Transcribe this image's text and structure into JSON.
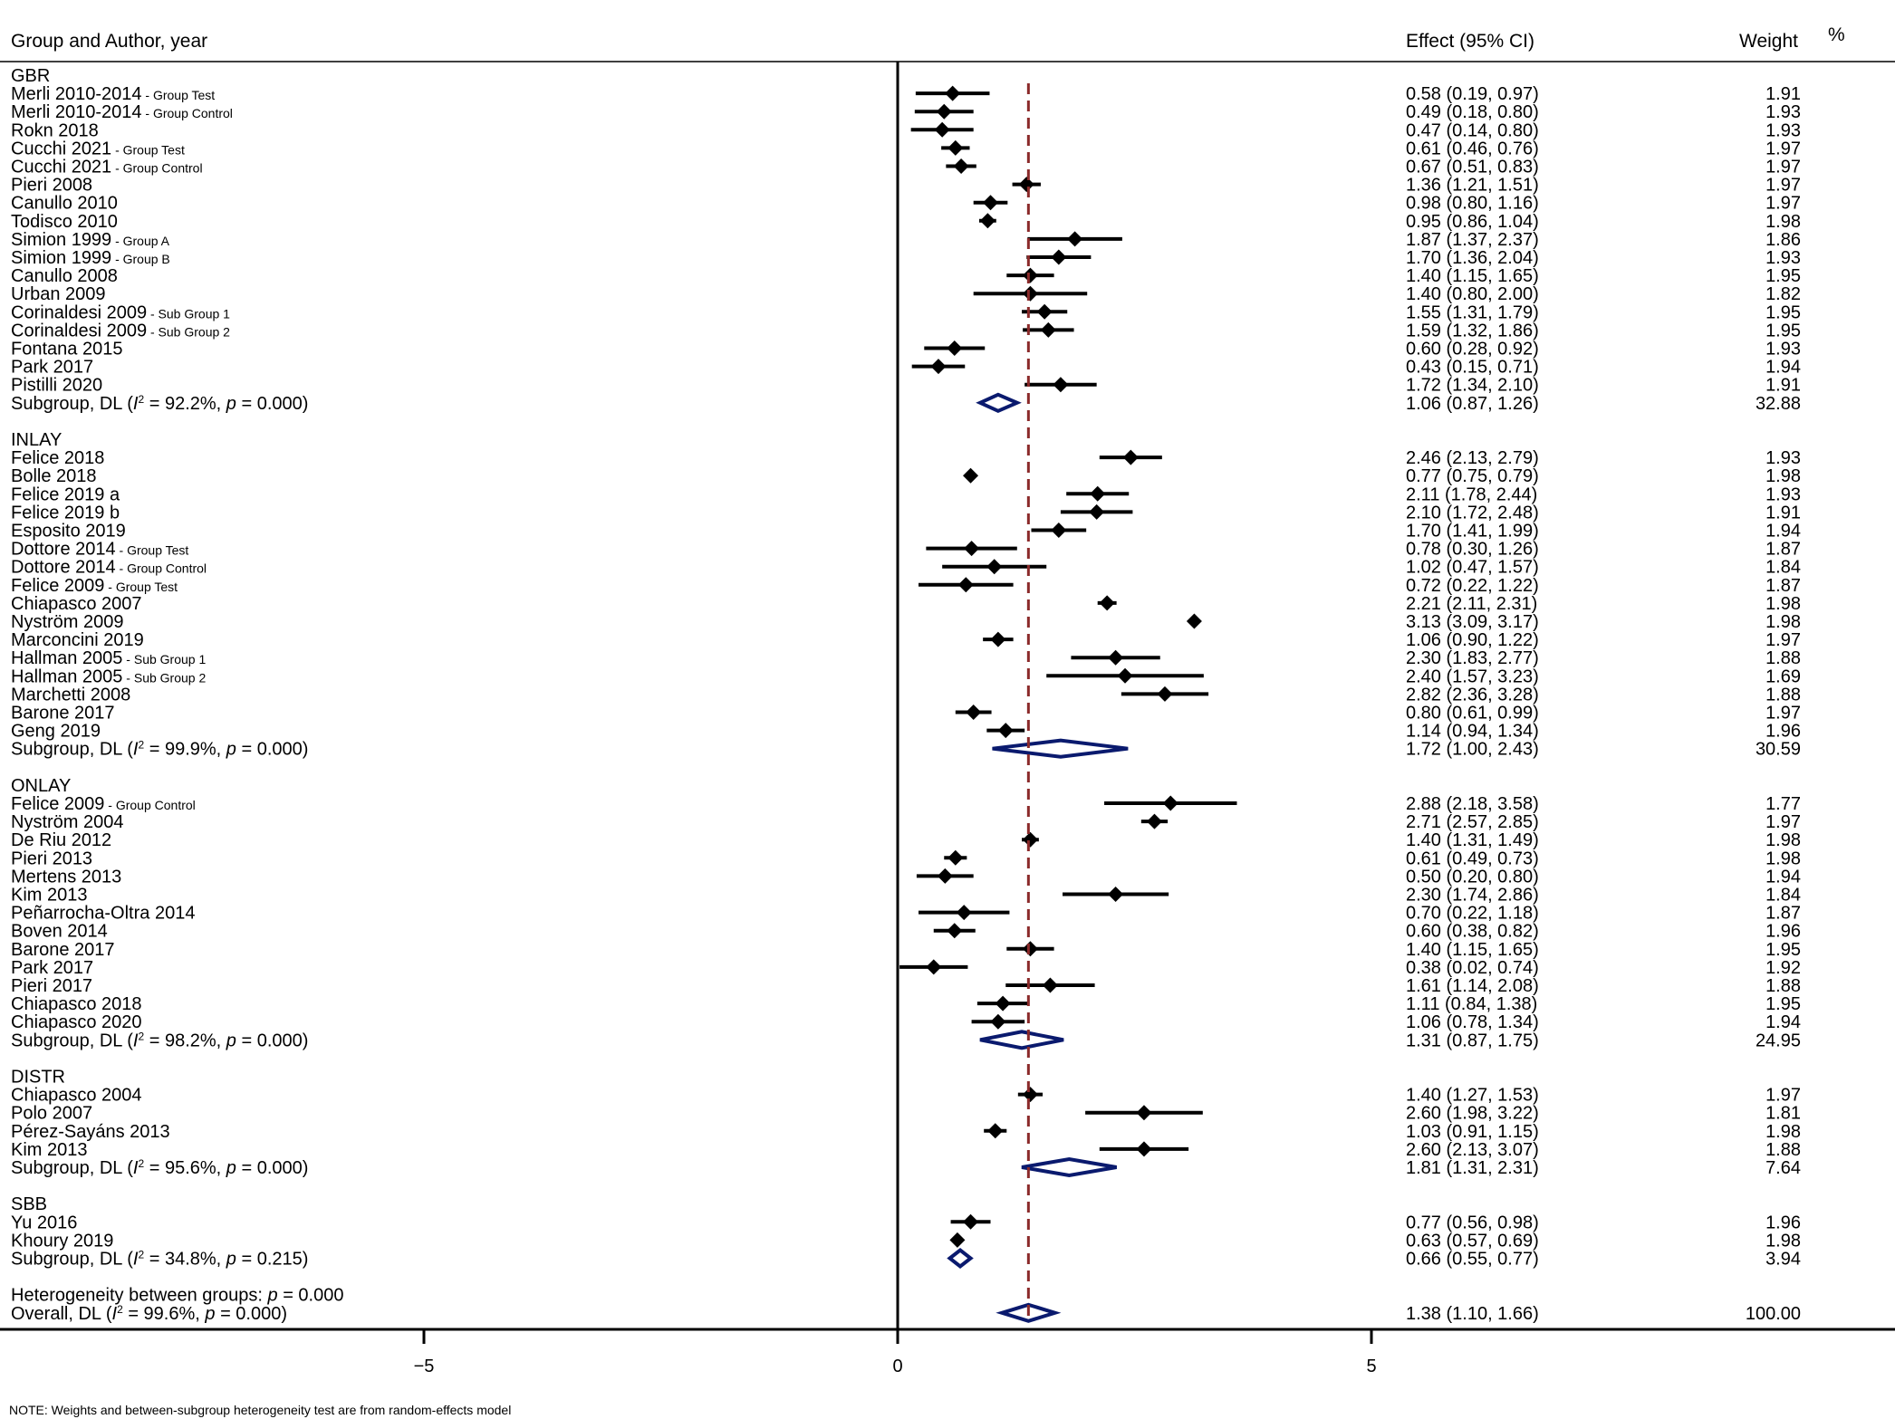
{
  "chart_data": {
    "type": "forest",
    "headers": {
      "study": "Group and Author, year",
      "effect": "Effect (95% CI)",
      "weight": "Weight",
      "weight_unit": "%"
    },
    "xaxis": {
      "ticks": [
        -5,
        0,
        5
      ],
      "tick_labels": [
        "−5",
        "0",
        "5"
      ],
      "range": [
        -9.5,
        10.5
      ]
    },
    "overall_reference": 1.38,
    "groups": [
      {
        "name": "GBR",
        "studies": [
          {
            "label": "Merli 2010-2014",
            "note": "- Group Test",
            "es": 0.58,
            "lo": 0.19,
            "hi": 0.97,
            "ci": "0.58 (0.19, 0.97)",
            "weight": "1.91"
          },
          {
            "label": "Merli 2010-2014",
            "note": "- Group Control",
            "es": 0.49,
            "lo": 0.18,
            "hi": 0.8,
            "ci": "0.49 (0.18, 0.80)",
            "weight": "1.93"
          },
          {
            "label": "Rokn 2018",
            "note": "",
            "es": 0.47,
            "lo": 0.14,
            "hi": 0.8,
            "ci": "0.47 (0.14, 0.80)",
            "weight": "1.93"
          },
          {
            "label": "Cucchi 2021",
            "note": "- Group Test",
            "es": 0.61,
            "lo": 0.46,
            "hi": 0.76,
            "ci": "0.61 (0.46, 0.76)",
            "weight": "1.97"
          },
          {
            "label": "Cucchi 2021",
            "note": "- Group Control",
            "es": 0.67,
            "lo": 0.51,
            "hi": 0.83,
            "ci": "0.67 (0.51, 0.83)",
            "weight": "1.97"
          },
          {
            "label": "Pieri 2008",
            "note": "",
            "es": 1.36,
            "lo": 1.21,
            "hi": 1.51,
            "ci": "1.36 (1.21, 1.51)",
            "weight": "1.97"
          },
          {
            "label": "Canullo 2010",
            "note": "",
            "es": 0.98,
            "lo": 0.8,
            "hi": 1.16,
            "ci": "0.98 (0.80, 1.16)",
            "weight": "1.97"
          },
          {
            "label": "Todisco 2010",
            "note": "",
            "es": 0.95,
            "lo": 0.86,
            "hi": 1.04,
            "ci": "0.95 (0.86, 1.04)",
            "weight": "1.98"
          },
          {
            "label": "Simion 1999",
            "note": "- Group A",
            "es": 1.87,
            "lo": 1.37,
            "hi": 2.37,
            "ci": "1.87 (1.37, 2.37)",
            "weight": "1.86"
          },
          {
            "label": "Simion 1999",
            "note": "- Group B",
            "es": 1.7,
            "lo": 1.36,
            "hi": 2.04,
            "ci": "1.70 (1.36, 2.04)",
            "weight": "1.93"
          },
          {
            "label": "Canullo 2008",
            "note": "",
            "es": 1.4,
            "lo": 1.15,
            "hi": 1.65,
            "ci": "1.40 (1.15, 1.65)",
            "weight": "1.95"
          },
          {
            "label": "Urban 2009",
            "note": "",
            "es": 1.4,
            "lo": 0.8,
            "hi": 2.0,
            "ci": "1.40 (0.80, 2.00)",
            "weight": "1.82"
          },
          {
            "label": "Corinaldesi 2009",
            "note": "- Sub Group 1",
            "es": 1.55,
            "lo": 1.31,
            "hi": 1.79,
            "ci": "1.55 (1.31, 1.79)",
            "weight": "1.95"
          },
          {
            "label": "Corinaldesi 2009",
            "note": "- Sub Group 2",
            "es": 1.59,
            "lo": 1.32,
            "hi": 1.86,
            "ci": "1.59 (1.32, 1.86)",
            "weight": "1.95"
          },
          {
            "label": "Fontana 2015",
            "note": "",
            "es": 0.6,
            "lo": 0.28,
            "hi": 0.92,
            "ci": "0.60 (0.28, 0.92)",
            "weight": "1.93"
          },
          {
            "label": "Park 2017",
            "note": "",
            "es": 0.43,
            "lo": 0.15,
            "hi": 0.71,
            "ci": "0.43 (0.15, 0.71)",
            "weight": "1.94"
          },
          {
            "label": "Pistilli 2020",
            "note": "",
            "es": 1.72,
            "lo": 1.34,
            "hi": 2.1,
            "ci": "1.72 (1.34, 2.10)",
            "weight": "1.91"
          }
        ],
        "subgroup": {
          "i2": "92.2%",
          "p": "0.000",
          "es": 1.06,
          "lo": 0.87,
          "hi": 1.26,
          "ci": "1.06 (0.87, 1.26)",
          "weight": "32.88"
        }
      },
      {
        "name": "INLAY",
        "studies": [
          {
            "label": "Felice 2018",
            "note": "",
            "es": 2.46,
            "lo": 2.13,
            "hi": 2.79,
            "ci": "2.46 (2.13, 2.79)",
            "weight": "1.93"
          },
          {
            "label": "Bolle 2018",
            "note": "",
            "es": 0.77,
            "lo": 0.75,
            "hi": 0.79,
            "ci": "0.77 (0.75, 0.79)",
            "weight": "1.98"
          },
          {
            "label": "Felice 2019 a",
            "note": "",
            "es": 2.11,
            "lo": 1.78,
            "hi": 2.44,
            "ci": "2.11 (1.78, 2.44)",
            "weight": "1.93"
          },
          {
            "label": "Felice 2019 b",
            "note": "",
            "es": 2.1,
            "lo": 1.72,
            "hi": 2.48,
            "ci": "2.10 (1.72, 2.48)",
            "weight": "1.91"
          },
          {
            "label": "Esposito 2019",
            "note": "",
            "es": 1.7,
            "lo": 1.41,
            "hi": 1.99,
            "ci": "1.70 (1.41, 1.99)",
            "weight": "1.94"
          },
          {
            "label": "Dottore 2014",
            "note": "- Group Test",
            "es": 0.78,
            "lo": 0.3,
            "hi": 1.26,
            "ci": "0.78 (0.30, 1.26)",
            "weight": "1.87"
          },
          {
            "label": "Dottore 2014",
            "note": "- Group Control",
            "es": 1.02,
            "lo": 0.47,
            "hi": 1.57,
            "ci": "1.02 (0.47, 1.57)",
            "weight": "1.84"
          },
          {
            "label": "Felice 2009",
            "note": "- Group Test",
            "es": 0.72,
            "lo": 0.22,
            "hi": 1.22,
            "ci": "0.72 (0.22, 1.22)",
            "weight": "1.87"
          },
          {
            "label": "Chiapasco 2007",
            "note": "",
            "es": 2.21,
            "lo": 2.11,
            "hi": 2.31,
            "ci": "2.21 (2.11, 2.31)",
            "weight": "1.98"
          },
          {
            "label": "Nyström 2009",
            "note": "",
            "es": 3.13,
            "lo": 3.09,
            "hi": 3.17,
            "ci": "3.13 (3.09, 3.17)",
            "weight": "1.98"
          },
          {
            "label": "Marconcini 2019",
            "note": "",
            "es": 1.06,
            "lo": 0.9,
            "hi": 1.22,
            "ci": "1.06 (0.90, 1.22)",
            "weight": "1.97"
          },
          {
            "label": "Hallman 2005",
            "note": "- Sub Group 1",
            "es": 2.3,
            "lo": 1.83,
            "hi": 2.77,
            "ci": "2.30 (1.83, 2.77)",
            "weight": "1.88"
          },
          {
            "label": "Hallman 2005",
            "note": "- Sub Group 2",
            "es": 2.4,
            "lo": 1.57,
            "hi": 3.23,
            "ci": "2.40 (1.57, 3.23)",
            "weight": "1.69"
          },
          {
            "label": "Marchetti 2008",
            "note": "",
            "es": 2.82,
            "lo": 2.36,
            "hi": 3.28,
            "ci": "2.82 (2.36, 3.28)",
            "weight": "1.88"
          },
          {
            "label": "Barone 2017",
            "note": "",
            "es": 0.8,
            "lo": 0.61,
            "hi": 0.99,
            "ci": "0.80 (0.61, 0.99)",
            "weight": "1.97"
          },
          {
            "label": "Geng 2019",
            "note": "",
            "es": 1.14,
            "lo": 0.94,
            "hi": 1.34,
            "ci": "1.14 (0.94, 1.34)",
            "weight": "1.96"
          }
        ],
        "subgroup": {
          "i2": "99.9%",
          "p": "0.000",
          "es": 1.72,
          "lo": 1.0,
          "hi": 2.43,
          "ci": "1.72 (1.00, 2.43)",
          "weight": "30.59"
        }
      },
      {
        "name": "ONLAY",
        "studies": [
          {
            "label": "Felice 2009",
            "note": "- Group Control",
            "es": 2.88,
            "lo": 2.18,
            "hi": 3.58,
            "ci": "2.88 (2.18, 3.58)",
            "weight": "1.77"
          },
          {
            "label": "Nyström 2004",
            "note": "",
            "es": 2.71,
            "lo": 2.57,
            "hi": 2.85,
            "ci": "2.71 (2.57, 2.85)",
            "weight": "1.97"
          },
          {
            "label": "De Riu 2012",
            "note": "",
            "es": 1.4,
            "lo": 1.31,
            "hi": 1.49,
            "ci": "1.40 (1.31, 1.49)",
            "weight": "1.98"
          },
          {
            "label": "Pieri 2013",
            "note": "",
            "es": 0.61,
            "lo": 0.49,
            "hi": 0.73,
            "ci": "0.61 (0.49, 0.73)",
            "weight": "1.98"
          },
          {
            "label": "Mertens 2013",
            "note": "",
            "es": 0.5,
            "lo": 0.2,
            "hi": 0.8,
            "ci": "0.50 (0.20, 0.80)",
            "weight": "1.94"
          },
          {
            "label": "Kim 2013",
            "note": "",
            "es": 2.3,
            "lo": 1.74,
            "hi": 2.86,
            "ci": "2.30 (1.74, 2.86)",
            "weight": "1.84"
          },
          {
            "label": "Peñarrocha-Oltra 2014",
            "note": "",
            "es": 0.7,
            "lo": 0.22,
            "hi": 1.18,
            "ci": "0.70 (0.22, 1.18)",
            "weight": "1.87"
          },
          {
            "label": "Boven 2014",
            "note": "",
            "es": 0.6,
            "lo": 0.38,
            "hi": 0.82,
            "ci": "0.60 (0.38, 0.82)",
            "weight": "1.96"
          },
          {
            "label": "Barone 2017",
            "note": "",
            "es": 1.4,
            "lo": 1.15,
            "hi": 1.65,
            "ci": "1.40 (1.15, 1.65)",
            "weight": "1.95"
          },
          {
            "label": "Park 2017",
            "note": "",
            "es": 0.38,
            "lo": 0.02,
            "hi": 0.74,
            "ci": "0.38 (0.02, 0.74)",
            "weight": "1.92"
          },
          {
            "label": "Pieri 2017",
            "note": "",
            "es": 1.61,
            "lo": 1.14,
            "hi": 2.08,
            "ci": "1.61 (1.14, 2.08)",
            "weight": "1.88"
          },
          {
            "label": "Chiapasco 2018",
            "note": "",
            "es": 1.11,
            "lo": 0.84,
            "hi": 1.38,
            "ci": "1.11 (0.84, 1.38)",
            "weight": "1.95"
          },
          {
            "label": "Chiapasco 2020",
            "note": "",
            "es": 1.06,
            "lo": 0.78,
            "hi": 1.34,
            "ci": "1.06 (0.78, 1.34)",
            "weight": "1.94"
          }
        ],
        "subgroup": {
          "i2": "98.2%",
          "p": "0.000",
          "es": 1.31,
          "lo": 0.87,
          "hi": 1.75,
          "ci": "1.31 (0.87, 1.75)",
          "weight": "24.95"
        }
      },
      {
        "name": "DISTR",
        "studies": [
          {
            "label": "Chiapasco 2004",
            "note": "",
            "es": 1.4,
            "lo": 1.27,
            "hi": 1.53,
            "ci": "1.40 (1.27, 1.53)",
            "weight": "1.97"
          },
          {
            "label": "Polo 2007",
            "note": "",
            "es": 2.6,
            "lo": 1.98,
            "hi": 3.22,
            "ci": "2.60 (1.98, 3.22)",
            "weight": "1.81"
          },
          {
            "label": "Pérez-Sayáns 2013",
            "note": "",
            "es": 1.03,
            "lo": 0.91,
            "hi": 1.15,
            "ci": "1.03 (0.91, 1.15)",
            "weight": "1.98"
          },
          {
            "label": "Kim 2013",
            "note": "",
            "es": 2.6,
            "lo": 2.13,
            "hi": 3.07,
            "ci": "2.60 (2.13, 3.07)",
            "weight": "1.88"
          }
        ],
        "subgroup": {
          "i2": "95.6%",
          "p": "0.000",
          "es": 1.81,
          "lo": 1.31,
          "hi": 2.31,
          "ci": "1.81 (1.31, 2.31)",
          "weight": "7.64"
        }
      },
      {
        "name": "SBB",
        "studies": [
          {
            "label": "Yu 2016",
            "note": "",
            "es": 0.77,
            "lo": 0.56,
            "hi": 0.98,
            "ci": "0.77 (0.56, 0.98)",
            "weight": "1.96"
          },
          {
            "label": "Khoury 2019",
            "note": "",
            "es": 0.63,
            "lo": 0.57,
            "hi": 0.69,
            "ci": "0.63 (0.57, 0.69)",
            "weight": "1.98"
          }
        ],
        "subgroup": {
          "i2": "34.8%",
          "p": "0.215",
          "es": 0.66,
          "lo": 0.55,
          "hi": 0.77,
          "ci": "0.66 (0.55, 0.77)",
          "weight": "3.94"
        }
      }
    ],
    "subgroup_prefix": "Subgroup, DL",
    "heterogeneity": {
      "prefix": "Heterogeneity between groups:",
      "p": "0.000"
    },
    "overall": {
      "prefix": "Overall, DL",
      "i2": "99.6%",
      "p": "0.000",
      "es": 1.38,
      "lo": 1.1,
      "hi": 1.66,
      "ci": "1.38 (1.10, 1.66)",
      "weight": "100.00"
    },
    "note": "NOTE: Weights and between-subgroup heterogeneity test are from random-effects model",
    "colors": {
      "marker": "#000000",
      "diamond": "#0a1a6e",
      "refline": "#8b2a2a",
      "axis": "#000000"
    }
  }
}
